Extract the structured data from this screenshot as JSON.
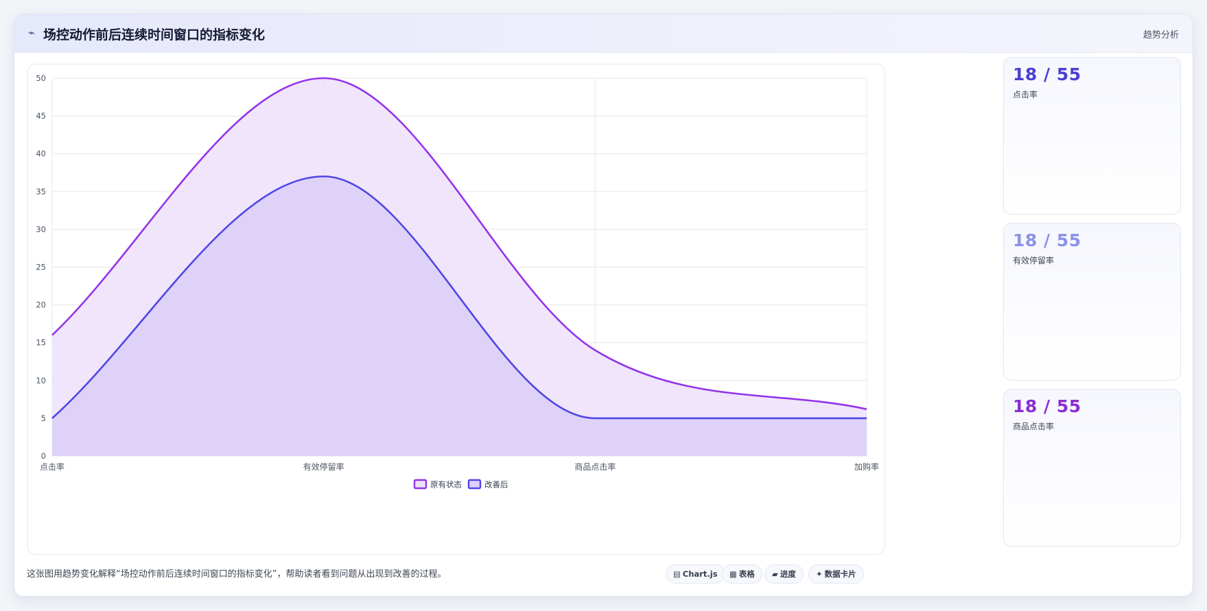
{
  "header": {
    "icon": "trend-icon",
    "title": "场控动作前后连续时间窗口的指标变化",
    "tag": "趋势分析"
  },
  "stats": [
    {
      "value": "18 / 55",
      "label": "点击率",
      "color": "#4b3fd1"
    },
    {
      "value": "18 / 55",
      "label": "有效停留率",
      "color": "#8b93e6"
    },
    {
      "value": "18 / 55",
      "label": "商品点击率",
      "color": "#8a2fd1"
    }
  ],
  "caption": "这张图用趋势变化解释“场控动作前后连续时间窗口的指标变化”，帮助读者看到问题从出现到改善的过程。",
  "toolbar": [
    {
      "icon": "▤",
      "icon_name": "chart-icon",
      "label": "Chart.js"
    },
    {
      "icon": "▦",
      "icon_name": "table-icon",
      "label": "表格"
    },
    {
      "icon": "▰",
      "icon_name": "progress-icon",
      "label": "进度"
    },
    {
      "icon": "✦",
      "icon_name": "card-icon",
      "label": "数据卡片"
    }
  ],
  "chart_data": {
    "type": "area",
    "categories": [
      "点击率",
      "有效停留率",
      "商品点击率",
      "加购率"
    ],
    "series": [
      {
        "name": "原有状态",
        "values": [
          16,
          50,
          14,
          6.2
        ],
        "color": "#9333ea",
        "fill": "#ede0fa"
      },
      {
        "name": "改善后",
        "values": [
          5,
          37,
          5,
          5
        ],
        "color": "#4f46e5",
        "fill": "#dccff8"
      }
    ],
    "ylim": [
      0,
      50
    ],
    "yticks": [
      0,
      5,
      10,
      15,
      20,
      25,
      30,
      35,
      40,
      45,
      50
    ],
    "grid": true,
    "legend": "bottom",
    "smooth": true
  }
}
